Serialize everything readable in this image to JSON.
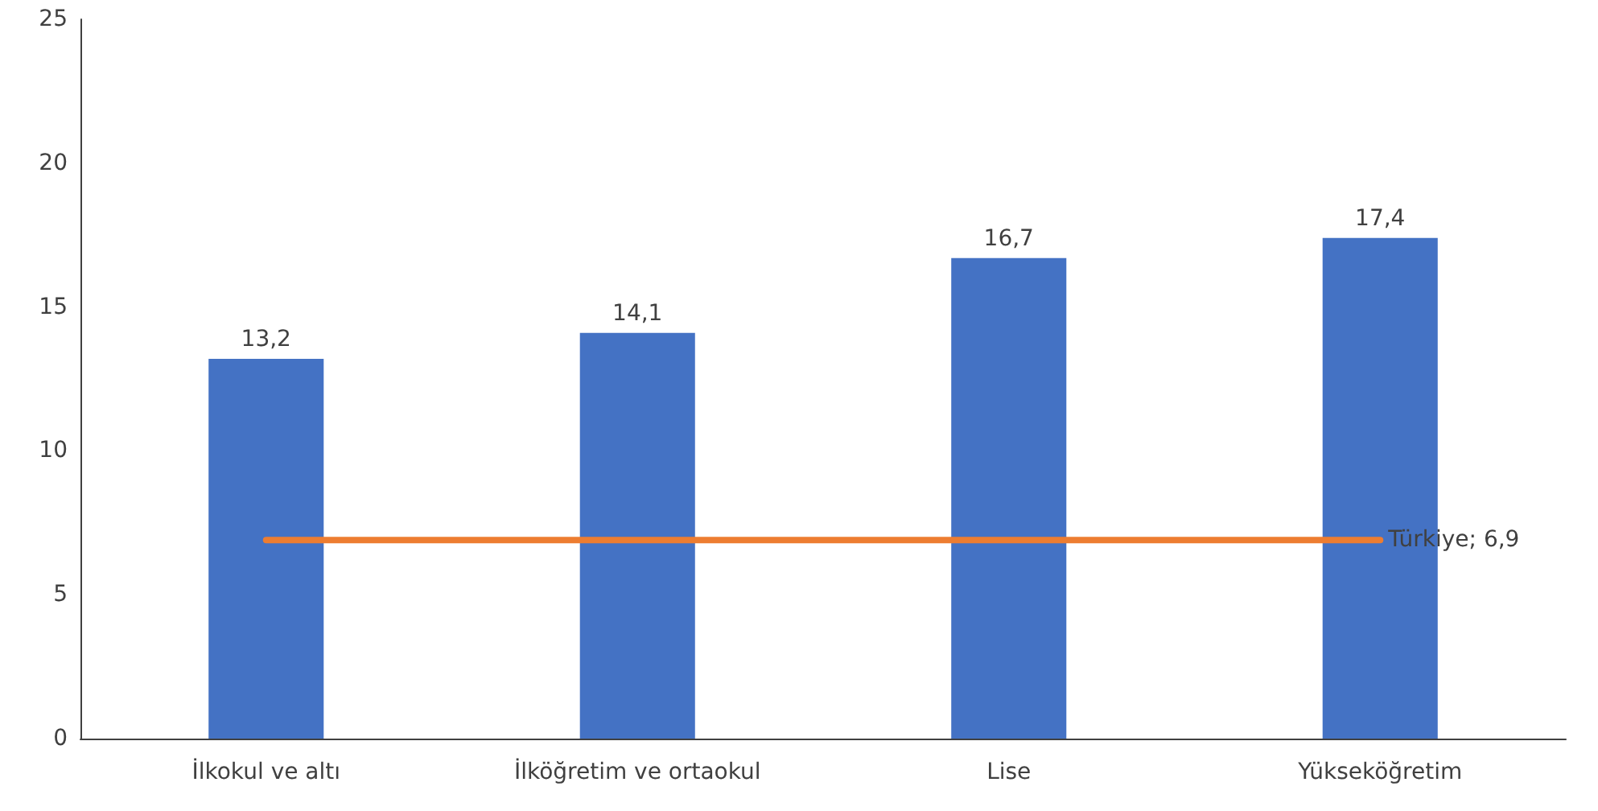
{
  "chart_data": {
    "type": "bar",
    "categories": [
      "İlkokul ve altı",
      "İlköğretim ve ortaokul",
      "Lise",
      "Yükseköğretim"
    ],
    "series": [
      {
        "color": "#4472c4",
        "values": [
          13.2,
          14.1,
          16.7,
          17.4
        ],
        "value_labels": [
          "13,2",
          "14,1",
          "16,7",
          "17,4"
        ]
      },
      {
        "type": "line",
        "color": "#ed7d31",
        "values": [
          6.9,
          6.9,
          6.9,
          6.9
        ],
        "value_labels": [
          null,
          null,
          null,
          "Türkiye; 6,9"
        ]
      }
    ],
    "ylim": [
      0,
      25
    ],
    "yticks": [
      0,
      5,
      10,
      15,
      20,
      25
    ],
    "grid": false,
    "marker": "none",
    "line_style": "solid"
  }
}
